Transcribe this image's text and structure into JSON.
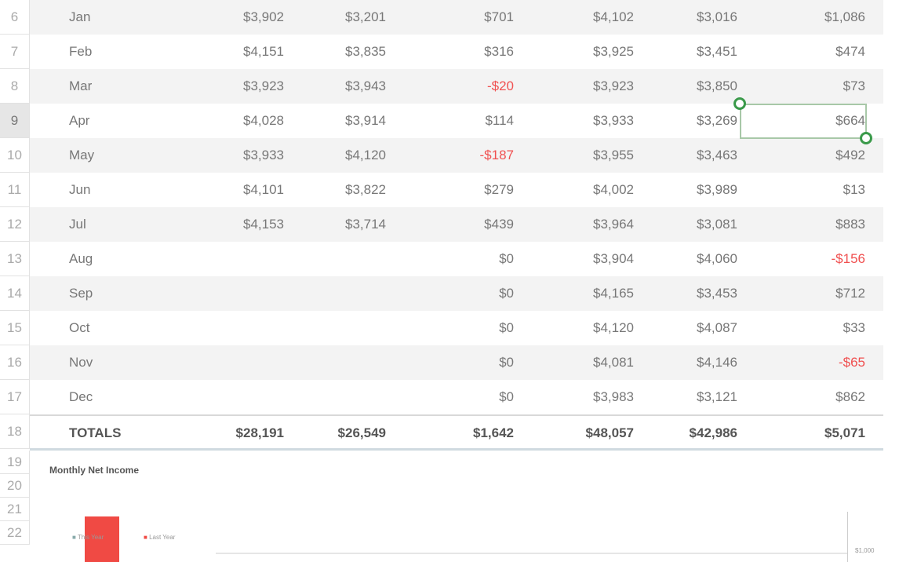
{
  "rows": [
    {
      "num": "6",
      "month": "Jan",
      "v": [
        "$3,902",
        "$3,201",
        "$701",
        "$4,102",
        "$3,016",
        "$1,086"
      ]
    },
    {
      "num": "7",
      "month": "Feb",
      "v": [
        "$4,151",
        "$3,835",
        "$316",
        "$3,925",
        "$3,451",
        "$474"
      ]
    },
    {
      "num": "8",
      "month": "Mar",
      "v": [
        "$3,923",
        "$3,943",
        "-$20",
        "$3,923",
        "$3,850",
        "$73"
      ]
    },
    {
      "num": "9",
      "month": "Apr",
      "v": [
        "$4,028",
        "$3,914",
        "$114",
        "$3,933",
        "$3,269",
        "$664"
      ]
    },
    {
      "num": "10",
      "month": "May",
      "v": [
        "$3,933",
        "$4,120",
        "-$187",
        "$3,955",
        "$3,463",
        "$492"
      ]
    },
    {
      "num": "11",
      "month": "Jun",
      "v": [
        "$4,101",
        "$3,822",
        "$279",
        "$4,002",
        "$3,989",
        "$13"
      ]
    },
    {
      "num": "12",
      "month": "Jul",
      "v": [
        "$4,153",
        "$3,714",
        "$439",
        "$3,964",
        "$3,081",
        "$883"
      ]
    },
    {
      "num": "13",
      "month": "Aug",
      "v": [
        "",
        "",
        "$0",
        "$3,904",
        "$4,060",
        "-$156"
      ]
    },
    {
      "num": "14",
      "month": "Sep",
      "v": [
        "",
        "",
        "$0",
        "$4,165",
        "$3,453",
        "$712"
      ]
    },
    {
      "num": "15",
      "month": "Oct",
      "v": [
        "",
        "",
        "$0",
        "$4,120",
        "$4,087",
        "$33"
      ]
    },
    {
      "num": "16",
      "month": "Nov",
      "v": [
        "",
        "",
        "$0",
        "$4,081",
        "$4,146",
        "-$65"
      ]
    },
    {
      "num": "17",
      "month": "Dec",
      "v": [
        "",
        "",
        "$0",
        "$3,983",
        "$3,121",
        "$862"
      ]
    }
  ],
  "totals": {
    "num": "18",
    "label": "TOTALS",
    "v": [
      "$28,191",
      "$26,549",
      "$1,642",
      "$48,057",
      "$42,986",
      "$5,071"
    ]
  },
  "chart_rows": [
    "19",
    "20",
    "21",
    "22"
  ],
  "chart": {
    "title": "Monthly Net Income",
    "legend": [
      "This Year",
      "Last Year"
    ],
    "y_tick": "$1,000",
    "colors": {
      "last_year": "#f04a44"
    }
  },
  "selected_cell": {
    "row": "9",
    "column": 6
  },
  "colors": {
    "negative": "#f05050",
    "selection": "#3a9a4a"
  }
}
